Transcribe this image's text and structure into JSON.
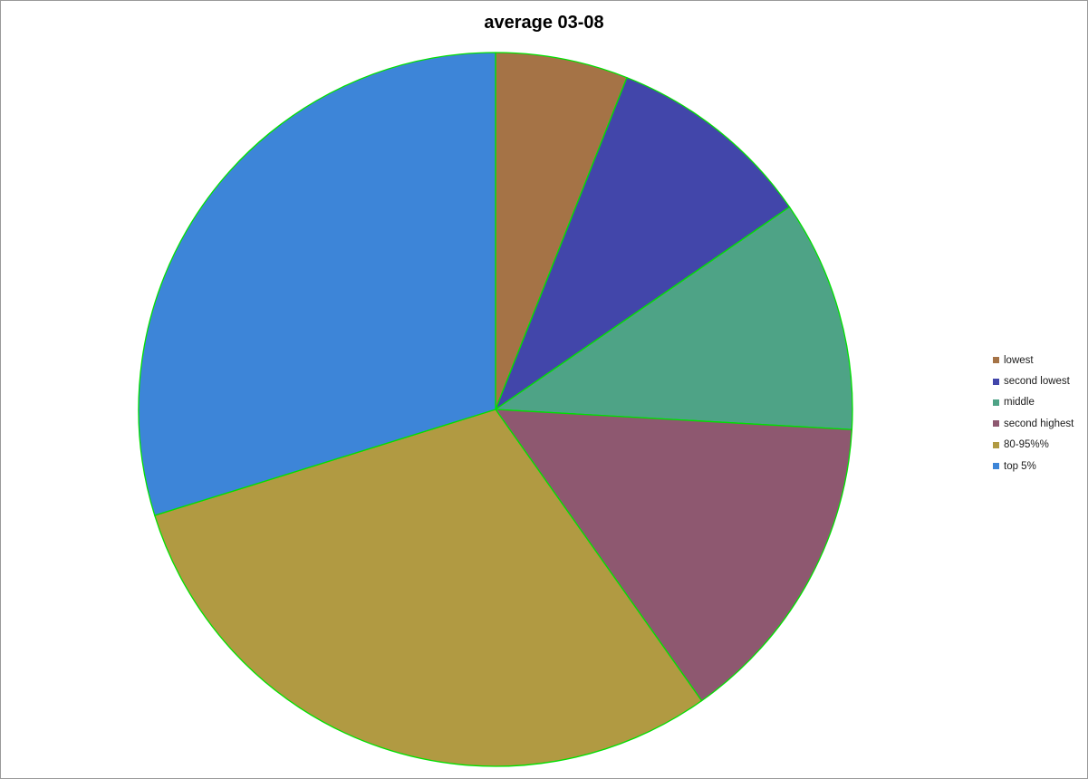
{
  "chart_data": {
    "type": "pie",
    "title": "average 03-08",
    "start_angle_deg": 0,
    "direction": "clockwise",
    "border_color": "#00e000",
    "legend_position": "right",
    "slices": [
      {
        "label": "lowest",
        "value": 6.0,
        "color": "#a57346"
      },
      {
        "label": "second lowest",
        "value": 9.4,
        "color": "#4246aa"
      },
      {
        "label": "middle",
        "value": 10.5,
        "color": "#4ea386"
      },
      {
        "label": "second highest",
        "value": 14.3,
        "color": "#8e5870"
      },
      {
        "label": "80-95%%",
        "value": 30.0,
        "color": "#b19a42"
      },
      {
        "label": "top 5%",
        "value": 29.8,
        "color": "#3d85d8"
      }
    ]
  }
}
